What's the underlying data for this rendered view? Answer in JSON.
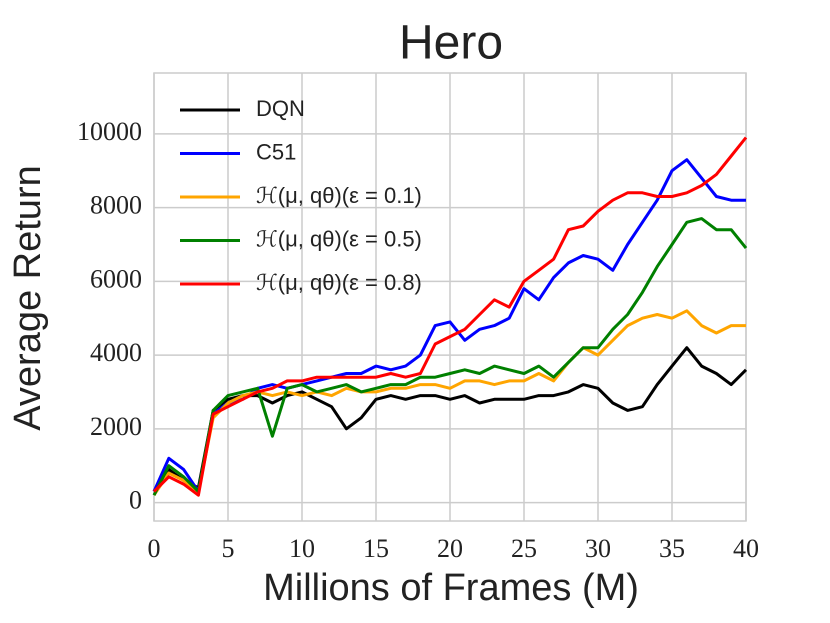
{
  "chart_data": {
    "type": "line",
    "title": "Hero",
    "xlabel": "Millions of Frames (M)",
    "ylabel": "Average Return",
    "x": [
      0,
      1,
      2,
      3,
      4,
      5,
      6,
      7,
      8,
      9,
      10,
      11,
      12,
      13,
      14,
      15,
      16,
      17,
      18,
      19,
      20,
      21,
      22,
      23,
      24,
      25,
      26,
      27,
      28,
      29,
      30,
      31,
      32,
      33,
      34,
      35,
      36,
      37,
      38,
      39,
      40
    ],
    "series": [
      {
        "name": "DQN",
        "color": "#000000",
        "values": [
          300,
          900,
          600,
          400,
          2500,
          2800,
          2900,
          2900,
          2700,
          2900,
          3000,
          2800,
          2600,
          2000,
          2300,
          2800,
          2900,
          2800,
          2900,
          2900,
          2800,
          2900,
          2700,
          2800,
          2800,
          2800,
          2900,
          2900,
          3000,
          3200,
          3100,
          2700,
          2500,
          2600,
          3200,
          3700,
          4200,
          3700,
          3500,
          3200,
          3600
        ]
      },
      {
        "name": "C51",
        "color": "#0000ff",
        "values": [
          300,
          1200,
          900,
          300,
          2400,
          2700,
          2800,
          3100,
          3200,
          3100,
          3200,
          3300,
          3400,
          3500,
          3500,
          3700,
          3600,
          3700,
          4000,
          4800,
          4900,
          4400,
          4700,
          4800,
          5000,
          5800,
          5500,
          6100,
          6500,
          6700,
          6600,
          6300,
          7000,
          7600,
          8200,
          9000,
          9300,
          8800,
          8300,
          8200,
          8200
        ]
      },
      {
        "name": "ℋ(μ, qθ)(ε = 0.1)",
        "color": "#ffa500",
        "values": [
          200,
          800,
          600,
          300,
          2300,
          2700,
          2900,
          3000,
          2900,
          3000,
          2900,
          3000,
          2900,
          3100,
          3000,
          3000,
          3100,
          3100,
          3200,
          3200,
          3100,
          3300,
          3300,
          3200,
          3300,
          3300,
          3500,
          3300,
          3800,
          4200,
          4000,
          4400,
          4800,
          5000,
          5100,
          5000,
          5200,
          4800,
          4600,
          4800,
          4800
        ]
      },
      {
        "name": "ℋ(μ, qθ)(ε = 0.5)",
        "color": "#008000",
        "values": [
          200,
          1000,
          700,
          300,
          2500,
          2900,
          3000,
          3100,
          1800,
          3100,
          3200,
          3000,
          3100,
          3200,
          3000,
          3100,
          3200,
          3200,
          3400,
          3400,
          3500,
          3600,
          3500,
          3700,
          3600,
          3500,
          3700,
          3400,
          3800,
          4200,
          4200,
          4700,
          5100,
          5700,
          6400,
          7000,
          7600,
          7700,
          7400,
          7400,
          6900
        ]
      },
      {
        "name": "ℋ(μ, qθ)(ε = 0.8)",
        "color": "#ff0000",
        "values": [
          300,
          700,
          500,
          200,
          2400,
          2600,
          2800,
          3000,
          3100,
          3300,
          3300,
          3400,
          3400,
          3400,
          3400,
          3400,
          3500,
          3400,
          3500,
          4300,
          4500,
          4700,
          5100,
          5500,
          5300,
          6000,
          6300,
          6600,
          7400,
          7500,
          7900,
          8200,
          8400,
          8400,
          8300,
          8300,
          8400,
          8600,
          8900,
          9400,
          9900
        ]
      }
    ],
    "xlim": [
      0,
      40
    ],
    "ylim": [
      -500,
      11650
    ],
    "xticks": [
      0,
      5,
      10,
      15,
      20,
      25,
      30,
      35,
      40
    ],
    "yticks": [
      0,
      2000,
      4000,
      6000,
      8000,
      10000
    ],
    "grid": true,
    "legend": "upper left"
  }
}
